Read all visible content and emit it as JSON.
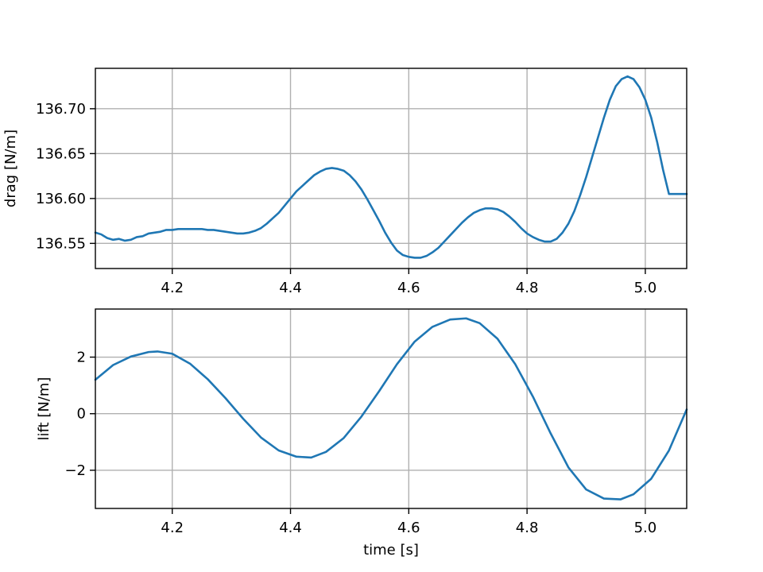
{
  "chart_data": [
    {
      "type": "line",
      "xlabel": "",
      "ylabel": "drag [N/m]",
      "xlim": [
        4.07,
        5.07
      ],
      "ylim": [
        136.522,
        136.745
      ],
      "xticks": [
        4.2,
        4.4,
        4.6,
        4.8,
        5.0
      ],
      "xtick_labels": [
        "4.2",
        "4.4",
        "4.6",
        "4.8",
        "5.0"
      ],
      "yticks": [
        136.55,
        136.6,
        136.65,
        136.7
      ],
      "ytick_labels": [
        "136.55",
        "136.60",
        "136.65",
        "136.70"
      ],
      "grid": true,
      "series": [
        {
          "color": "#1f77b4",
          "x": [
            4.07,
            4.08,
            4.09,
            4.1,
            4.11,
            4.12,
            4.13,
            4.14,
            4.15,
            4.16,
            4.17,
            4.18,
            4.19,
            4.2,
            4.21,
            4.22,
            4.23,
            4.24,
            4.25,
            4.26,
            4.27,
            4.28,
            4.29,
            4.3,
            4.31,
            4.32,
            4.33,
            4.34,
            4.35,
            4.36,
            4.37,
            4.38,
            4.39,
            4.4,
            4.41,
            4.42,
            4.43,
            4.44,
            4.45,
            4.46,
            4.47,
            4.48,
            4.49,
            4.5,
            4.51,
            4.52,
            4.53,
            4.54,
            4.55,
            4.56,
            4.57,
            4.58,
            4.59,
            4.6,
            4.61,
            4.62,
            4.63,
            4.64,
            4.65,
            4.66,
            4.67,
            4.68,
            4.69,
            4.7,
            4.71,
            4.72,
            4.73,
            4.74,
            4.75,
            4.76,
            4.77,
            4.78,
            4.79,
            4.8,
            4.81,
            4.82,
            4.83,
            4.84,
            4.85,
            4.86,
            4.87,
            4.88,
            4.89,
            4.9,
            4.91,
            4.92,
            4.93,
            4.94,
            4.95,
            4.96,
            4.97,
            4.98,
            4.99,
            5.0,
            5.01,
            5.02,
            5.03,
            5.04,
            5.05,
            5.06,
            5.07
          ],
          "y": [
            136.562,
            136.56,
            136.556,
            136.554,
            136.555,
            136.553,
            136.554,
            136.557,
            136.558,
            136.561,
            136.562,
            136.563,
            136.565,
            136.565,
            136.566,
            136.566,
            136.566,
            136.566,
            136.566,
            136.565,
            136.565,
            136.564,
            136.563,
            136.562,
            136.561,
            136.561,
            136.562,
            136.564,
            136.567,
            136.572,
            136.578,
            136.584,
            136.592,
            136.6,
            136.608,
            136.614,
            136.62,
            136.626,
            136.63,
            136.633,
            136.634,
            136.633,
            136.631,
            136.626,
            136.619,
            136.61,
            136.599,
            136.587,
            136.575,
            136.562,
            136.551,
            136.542,
            136.537,
            136.535,
            136.534,
            136.534,
            136.536,
            136.54,
            136.545,
            136.552,
            136.559,
            136.566,
            136.573,
            136.579,
            136.584,
            136.587,
            136.589,
            136.589,
            136.588,
            136.585,
            136.58,
            136.574,
            136.567,
            136.561,
            136.557,
            136.554,
            136.552,
            136.552,
            136.555,
            136.562,
            136.572,
            136.586,
            136.604,
            136.624,
            136.646,
            136.668,
            136.69,
            136.71,
            136.725,
            136.733,
            136.736,
            136.733,
            136.724,
            136.71,
            136.69,
            136.663,
            136.632,
            136.605,
            136.605,
            136.605,
            136.605
          ]
        }
      ]
    },
    {
      "type": "line",
      "xlabel": "time [s]",
      "ylabel": "lift [N/m]",
      "xlim": [
        4.07,
        5.07
      ],
      "ylim": [
        -3.35,
        3.7
      ],
      "xticks": [
        4.2,
        4.4,
        4.6,
        4.8,
        5.0
      ],
      "xtick_labels": [
        "4.2",
        "4.4",
        "4.6",
        "4.8",
        "5.0"
      ],
      "yticks": [
        -2,
        0,
        2
      ],
      "ytick_labels": [
        "−2",
        "0",
        "2"
      ],
      "grid": true,
      "series": [
        {
          "color": "#1f77b4",
          "x": [
            4.07,
            4.1,
            4.13,
            4.16,
            4.175,
            4.2,
            4.23,
            4.26,
            4.29,
            4.32,
            4.35,
            4.38,
            4.41,
            4.435,
            4.46,
            4.49,
            4.52,
            4.55,
            4.58,
            4.61,
            4.64,
            4.67,
            4.697,
            4.72,
            4.75,
            4.78,
            4.81,
            4.84,
            4.87,
            4.9,
            4.93,
            4.958,
            4.98,
            5.01,
            5.04,
            5.07
          ],
          "y": [
            1.2,
            1.72,
            2.02,
            2.18,
            2.2,
            2.12,
            1.77,
            1.22,
            0.55,
            -0.18,
            -0.84,
            -1.3,
            -1.52,
            -1.55,
            -1.35,
            -0.86,
            -0.1,
            0.8,
            1.75,
            2.55,
            3.07,
            3.33,
            3.37,
            3.2,
            2.65,
            1.75,
            0.6,
            -0.7,
            -1.9,
            -2.68,
            -3.0,
            -3.03,
            -2.85,
            -2.3,
            -1.3,
            0.15
          ]
        }
      ]
    }
  ]
}
